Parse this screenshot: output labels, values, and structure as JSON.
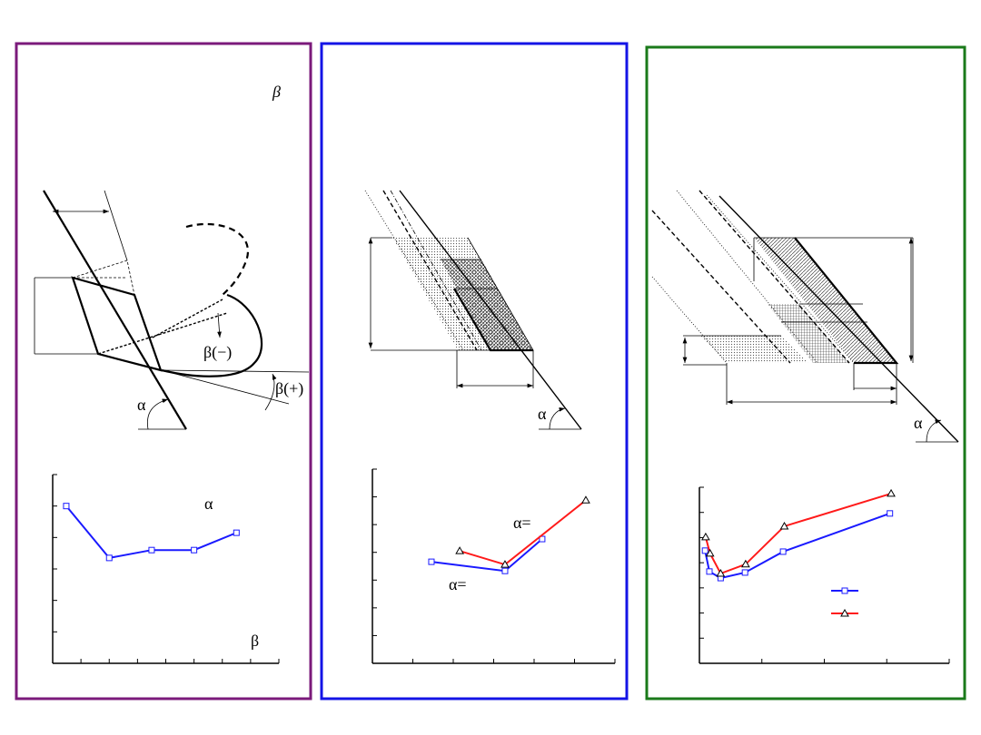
{
  "diagram_labels": [
    "β",
    "β(−)",
    "β(+)",
    "α",
    "α",
    "α"
  ],
  "chart_data": [
    {
      "type": "line",
      "xlim": [
        0,
        8
      ],
      "ylim": [
        0,
        6
      ],
      "xticks": [
        0,
        1,
        2,
        3,
        4,
        5,
        6,
        7,
        8
      ],
      "yticks": [
        0,
        1,
        2,
        3,
        4,
        5,
        6
      ],
      "annotations": [
        "α",
        "β"
      ],
      "series": [
        {
          "color": "#1a1aff",
          "marker": "square",
          "x": [
            0.48,
            2.0,
            3.5,
            5.0,
            6.5
          ],
          "values": [
            5.0,
            3.35,
            3.6,
            3.6,
            4.15
          ]
        }
      ]
    },
    {
      "type": "line",
      "xlim": [
        0,
        6
      ],
      "ylim": [
        0,
        7
      ],
      "xticks": [
        0,
        1,
        2,
        3,
        4,
        5,
        6
      ],
      "yticks": [
        0,
        1,
        2,
        3,
        4,
        5,
        6,
        7
      ],
      "annotations": [
        "α=",
        "α="
      ],
      "series": [
        {
          "color": "#1a1aff",
          "marker": "square",
          "x": [
            1.46,
            3.28,
            4.2
          ],
          "values": [
            3.66,
            3.33,
            4.48
          ]
        },
        {
          "color": "#ff1a1a",
          "marker": "triangle",
          "x": [
            2.16,
            3.28,
            5.28
          ],
          "values": [
            4.05,
            3.56,
            5.88
          ]
        }
      ]
    },
    {
      "type": "line",
      "xlim": [
        0,
        4
      ],
      "ylim": [
        0,
        7
      ],
      "xticks": [
        0,
        1,
        2,
        3,
        4
      ],
      "yticks": [
        0,
        1,
        2,
        3,
        4,
        5,
        6,
        7
      ],
      "legend": "center-right",
      "series": [
        {
          "color": "#1a1aff",
          "marker": "square",
          "x": [
            0.09,
            0.16,
            0.34,
            0.73,
            1.34,
            3.05
          ],
          "values": [
            4.48,
            3.65,
            3.39,
            3.61,
            4.44,
            5.96
          ]
        },
        {
          "color": "#ff1a1a",
          "marker": "triangle",
          "x": [
            0.1,
            0.17,
            0.34,
            0.74,
            1.36,
            3.07
          ],
          "values": [
            5.02,
            4.37,
            3.57,
            3.94,
            5.45,
            6.75
          ]
        }
      ]
    }
  ]
}
